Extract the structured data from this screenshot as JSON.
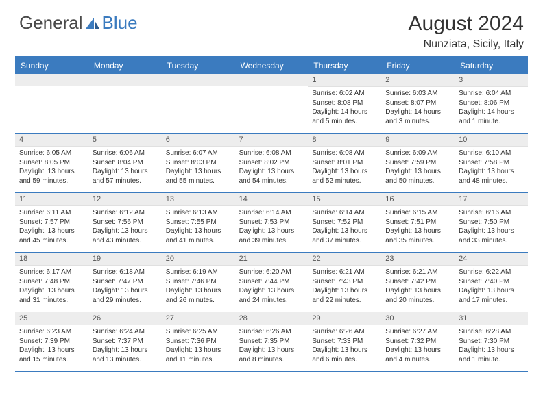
{
  "logo": {
    "text1": "General",
    "text2": "Blue"
  },
  "title": "August 2024",
  "location": "Nunziata, Sicily, Italy",
  "colors": {
    "header_bg": "#3b7bbf",
    "header_text": "#ffffff",
    "daynum_bg": "#ededed",
    "border": "#3b7bbf",
    "text": "#333333"
  },
  "day_names": [
    "Sunday",
    "Monday",
    "Tuesday",
    "Wednesday",
    "Thursday",
    "Friday",
    "Saturday"
  ],
  "weeks": [
    [
      {
        "day": "",
        "lines": []
      },
      {
        "day": "",
        "lines": []
      },
      {
        "day": "",
        "lines": []
      },
      {
        "day": "",
        "lines": []
      },
      {
        "day": "1",
        "lines": [
          "Sunrise: 6:02 AM",
          "Sunset: 8:08 PM",
          "Daylight: 14 hours and 5 minutes."
        ]
      },
      {
        "day": "2",
        "lines": [
          "Sunrise: 6:03 AM",
          "Sunset: 8:07 PM",
          "Daylight: 14 hours and 3 minutes."
        ]
      },
      {
        "day": "3",
        "lines": [
          "Sunrise: 6:04 AM",
          "Sunset: 8:06 PM",
          "Daylight: 14 hours and 1 minute."
        ]
      }
    ],
    [
      {
        "day": "4",
        "lines": [
          "Sunrise: 6:05 AM",
          "Sunset: 8:05 PM",
          "Daylight: 13 hours and 59 minutes."
        ]
      },
      {
        "day": "5",
        "lines": [
          "Sunrise: 6:06 AM",
          "Sunset: 8:04 PM",
          "Daylight: 13 hours and 57 minutes."
        ]
      },
      {
        "day": "6",
        "lines": [
          "Sunrise: 6:07 AM",
          "Sunset: 8:03 PM",
          "Daylight: 13 hours and 55 minutes."
        ]
      },
      {
        "day": "7",
        "lines": [
          "Sunrise: 6:08 AM",
          "Sunset: 8:02 PM",
          "Daylight: 13 hours and 54 minutes."
        ]
      },
      {
        "day": "8",
        "lines": [
          "Sunrise: 6:08 AM",
          "Sunset: 8:01 PM",
          "Daylight: 13 hours and 52 minutes."
        ]
      },
      {
        "day": "9",
        "lines": [
          "Sunrise: 6:09 AM",
          "Sunset: 7:59 PM",
          "Daylight: 13 hours and 50 minutes."
        ]
      },
      {
        "day": "10",
        "lines": [
          "Sunrise: 6:10 AM",
          "Sunset: 7:58 PM",
          "Daylight: 13 hours and 48 minutes."
        ]
      }
    ],
    [
      {
        "day": "11",
        "lines": [
          "Sunrise: 6:11 AM",
          "Sunset: 7:57 PM",
          "Daylight: 13 hours and 45 minutes."
        ]
      },
      {
        "day": "12",
        "lines": [
          "Sunrise: 6:12 AM",
          "Sunset: 7:56 PM",
          "Daylight: 13 hours and 43 minutes."
        ]
      },
      {
        "day": "13",
        "lines": [
          "Sunrise: 6:13 AM",
          "Sunset: 7:55 PM",
          "Daylight: 13 hours and 41 minutes."
        ]
      },
      {
        "day": "14",
        "lines": [
          "Sunrise: 6:14 AM",
          "Sunset: 7:53 PM",
          "Daylight: 13 hours and 39 minutes."
        ]
      },
      {
        "day": "15",
        "lines": [
          "Sunrise: 6:14 AM",
          "Sunset: 7:52 PM",
          "Daylight: 13 hours and 37 minutes."
        ]
      },
      {
        "day": "16",
        "lines": [
          "Sunrise: 6:15 AM",
          "Sunset: 7:51 PM",
          "Daylight: 13 hours and 35 minutes."
        ]
      },
      {
        "day": "17",
        "lines": [
          "Sunrise: 6:16 AM",
          "Sunset: 7:50 PM",
          "Daylight: 13 hours and 33 minutes."
        ]
      }
    ],
    [
      {
        "day": "18",
        "lines": [
          "Sunrise: 6:17 AM",
          "Sunset: 7:48 PM",
          "Daylight: 13 hours and 31 minutes."
        ]
      },
      {
        "day": "19",
        "lines": [
          "Sunrise: 6:18 AM",
          "Sunset: 7:47 PM",
          "Daylight: 13 hours and 29 minutes."
        ]
      },
      {
        "day": "20",
        "lines": [
          "Sunrise: 6:19 AM",
          "Sunset: 7:46 PM",
          "Daylight: 13 hours and 26 minutes."
        ]
      },
      {
        "day": "21",
        "lines": [
          "Sunrise: 6:20 AM",
          "Sunset: 7:44 PM",
          "Daylight: 13 hours and 24 minutes."
        ]
      },
      {
        "day": "22",
        "lines": [
          "Sunrise: 6:21 AM",
          "Sunset: 7:43 PM",
          "Daylight: 13 hours and 22 minutes."
        ]
      },
      {
        "day": "23",
        "lines": [
          "Sunrise: 6:21 AM",
          "Sunset: 7:42 PM",
          "Daylight: 13 hours and 20 minutes."
        ]
      },
      {
        "day": "24",
        "lines": [
          "Sunrise: 6:22 AM",
          "Sunset: 7:40 PM",
          "Daylight: 13 hours and 17 minutes."
        ]
      }
    ],
    [
      {
        "day": "25",
        "lines": [
          "Sunrise: 6:23 AM",
          "Sunset: 7:39 PM",
          "Daylight: 13 hours and 15 minutes."
        ]
      },
      {
        "day": "26",
        "lines": [
          "Sunrise: 6:24 AM",
          "Sunset: 7:37 PM",
          "Daylight: 13 hours and 13 minutes."
        ]
      },
      {
        "day": "27",
        "lines": [
          "Sunrise: 6:25 AM",
          "Sunset: 7:36 PM",
          "Daylight: 13 hours and 11 minutes."
        ]
      },
      {
        "day": "28",
        "lines": [
          "Sunrise: 6:26 AM",
          "Sunset: 7:35 PM",
          "Daylight: 13 hours and 8 minutes."
        ]
      },
      {
        "day": "29",
        "lines": [
          "Sunrise: 6:26 AM",
          "Sunset: 7:33 PM",
          "Daylight: 13 hours and 6 minutes."
        ]
      },
      {
        "day": "30",
        "lines": [
          "Sunrise: 6:27 AM",
          "Sunset: 7:32 PM",
          "Daylight: 13 hours and 4 minutes."
        ]
      },
      {
        "day": "31",
        "lines": [
          "Sunrise: 6:28 AM",
          "Sunset: 7:30 PM",
          "Daylight: 13 hours and 1 minute."
        ]
      }
    ]
  ]
}
